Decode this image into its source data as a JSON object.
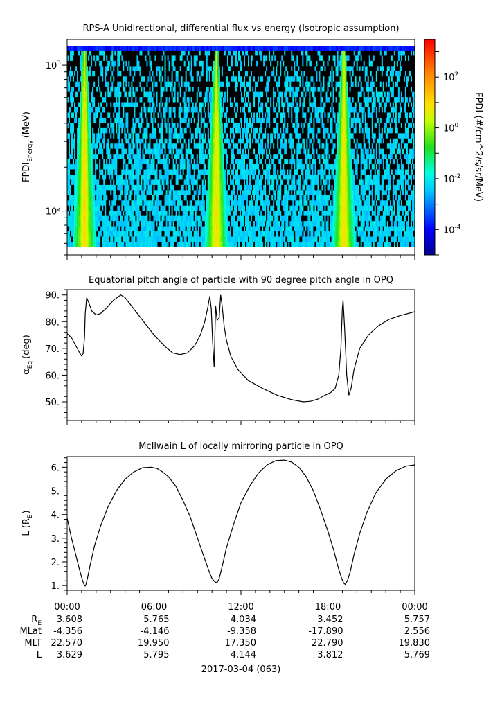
{
  "chart_data": [
    {
      "type": "heatmap",
      "title": "RPS-A Unidirectional, differential flux vs energy (Isotropic assumption)",
      "ylabel_main": "FPDI",
      "ylabel_sub": "Energy",
      "ylabel_unit": "(MeV)",
      "yscale": "log",
      "ylim": [
        50,
        1500
      ],
      "y_ticks": [
        {
          "value": 100,
          "base": "10",
          "exp": "2"
        },
        {
          "value": 1000,
          "base": "10",
          "exp": "3"
        }
      ],
      "x_range_hours": [
        0,
        24
      ],
      "colorbar": {
        "label": "FPDI (#/cm^2/s/sr/MeV)",
        "scale": "log",
        "range": [
          1e-05,
          3000
        ],
        "ticks": [
          {
            "value": 100,
            "base": "10",
            "exp": "2"
          },
          {
            "value": 1,
            "base": "10",
            "exp": "0"
          },
          {
            "value": 0.01,
            "base": "10",
            "exp": "-2"
          },
          {
            "value": 0.0001,
            "base": "10",
            "exp": "-4"
          }
        ]
      },
      "flux_peaks_hours": [
        1.2,
        10.3,
        19.1
      ]
    },
    {
      "type": "line",
      "title": "Equatorial pitch angle of particle with 90 degree pitch angle in OPQ",
      "ylabel_main": "α",
      "ylabel_sub": "Eq",
      "ylabel_unit": "(deg)",
      "ylim": [
        43,
        92
      ],
      "y_ticks": [
        50,
        60,
        70,
        80,
        90
      ],
      "y_tick_labels": [
        "50.",
        "60.",
        "70.",
        "80.",
        "90."
      ],
      "series": [
        {
          "name": "equatorial pitch angle",
          "x": [
            0,
            0.3,
            0.6,
            0.9,
            1.0,
            1.1,
            1.2,
            1.25,
            1.35,
            1.5,
            1.7,
            2.0,
            2.3,
            2.7,
            3.2,
            3.7,
            4.0,
            5.0,
            6.0,
            6.8,
            7.3,
            7.8,
            8.3,
            8.8,
            9.2,
            9.5,
            9.7,
            9.85,
            9.95,
            10.05,
            10.15,
            10.25,
            10.35,
            10.5,
            10.6,
            10.7,
            10.85,
            11.0,
            11.3,
            11.8,
            12.5,
            13.5,
            14.5,
            15.5,
            16.3,
            16.8,
            17.3,
            17.8,
            18.2,
            18.5,
            18.75,
            18.9,
            19.0,
            19.05,
            19.15,
            19.3,
            19.45,
            19.6,
            19.8,
            20.2,
            20.8,
            21.5,
            22.2,
            23.0,
            24.0
          ],
          "y": [
            75.5,
            74,
            71,
            68,
            67.2,
            68,
            74,
            83,
            89,
            87,
            84,
            82.5,
            83,
            85,
            88,
            90,
            89,
            82,
            75,
            70.5,
            68.3,
            67.7,
            68.3,
            71,
            75,
            80,
            85,
            89.5,
            85,
            72,
            63,
            86,
            80.5,
            81.5,
            90,
            86,
            78,
            73,
            67,
            62,
            58,
            55,
            52.5,
            50.8,
            50,
            50.2,
            51,
            52.5,
            53.5,
            55,
            60,
            70,
            85,
            88,
            78,
            60,
            52.5,
            55,
            62,
            70,
            75,
            78.5,
            80.8,
            82.3,
            83.7
          ]
        }
      ]
    },
    {
      "type": "line",
      "title": "McIlwain L of locally mirroring particle in OPQ",
      "ylabel_main": "L (R",
      "ylabel_sub": "E",
      "ylabel_unit": ")",
      "ylim": [
        0.8,
        6.45
      ],
      "y_ticks": [
        1,
        2,
        3,
        4,
        5,
        6
      ],
      "y_tick_labels": [
        "1.",
        "2.",
        "3.",
        "4.",
        "5.",
        "6."
      ],
      "series": [
        {
          "name": "McIlwain L",
          "x": [
            0,
            0.3,
            0.6,
            0.8,
            1.0,
            1.1,
            1.2,
            1.25,
            1.3,
            1.4,
            1.6,
            1.9,
            2.3,
            2.8,
            3.4,
            4.0,
            4.6,
            5.2,
            5.8,
            6.2,
            6.6,
            7.0,
            7.5,
            8.0,
            8.5,
            9.0,
            9.4,
            9.8,
            10.0,
            10.2,
            10.35,
            10.5,
            10.7,
            11.0,
            11.5,
            12.0,
            12.6,
            13.2,
            13.8,
            14.4,
            15.0,
            15.5,
            16.0,
            16.5,
            17.0,
            17.5,
            18.0,
            18.4,
            18.7,
            18.95,
            19.1,
            19.2,
            19.35,
            19.55,
            19.8,
            20.2,
            20.7,
            21.3,
            22.0,
            22.7,
            23.4,
            24.0
          ],
          "y": [
            3.85,
            3.0,
            2.3,
            1.8,
            1.35,
            1.15,
            1.0,
            0.98,
            1.05,
            1.3,
            1.9,
            2.7,
            3.5,
            4.3,
            5.0,
            5.5,
            5.8,
            5.98,
            6.0,
            5.95,
            5.8,
            5.6,
            5.2,
            4.6,
            3.9,
            3.0,
            2.3,
            1.6,
            1.3,
            1.15,
            1.12,
            1.3,
            1.8,
            2.6,
            3.6,
            4.5,
            5.2,
            5.75,
            6.1,
            6.28,
            6.3,
            6.22,
            6.0,
            5.6,
            5.0,
            4.2,
            3.3,
            2.5,
            1.8,
            1.3,
            1.1,
            1.05,
            1.2,
            1.6,
            2.3,
            3.2,
            4.1,
            4.9,
            5.5,
            5.85,
            6.05,
            6.1
          ]
        }
      ]
    }
  ],
  "time_axis": {
    "tick_labels": [
      "00:00",
      "06:00",
      "12:00",
      "18:00",
      "00:00"
    ],
    "date_label": "2017-03-04 (063)"
  },
  "ephemeris": {
    "rows": [
      {
        "label": "R",
        "label_sub": "E",
        "values": [
          "3.608",
          "5.765",
          "4.034",
          "3.452",
          "5.757"
        ]
      },
      {
        "label": "MLat",
        "label_sub": "",
        "values": [
          "-4.356",
          "-4.146",
          "-9.358",
          "-17.890",
          "2.556"
        ]
      },
      {
        "label": "MLT",
        "label_sub": "",
        "values": [
          "22.570",
          "19.950",
          "17.350",
          "22.790",
          "19.830"
        ]
      },
      {
        "label": "L",
        "label_sub": "",
        "values": [
          "3.629",
          "5.795",
          "4.144",
          "3.812",
          "5.769"
        ]
      }
    ]
  }
}
